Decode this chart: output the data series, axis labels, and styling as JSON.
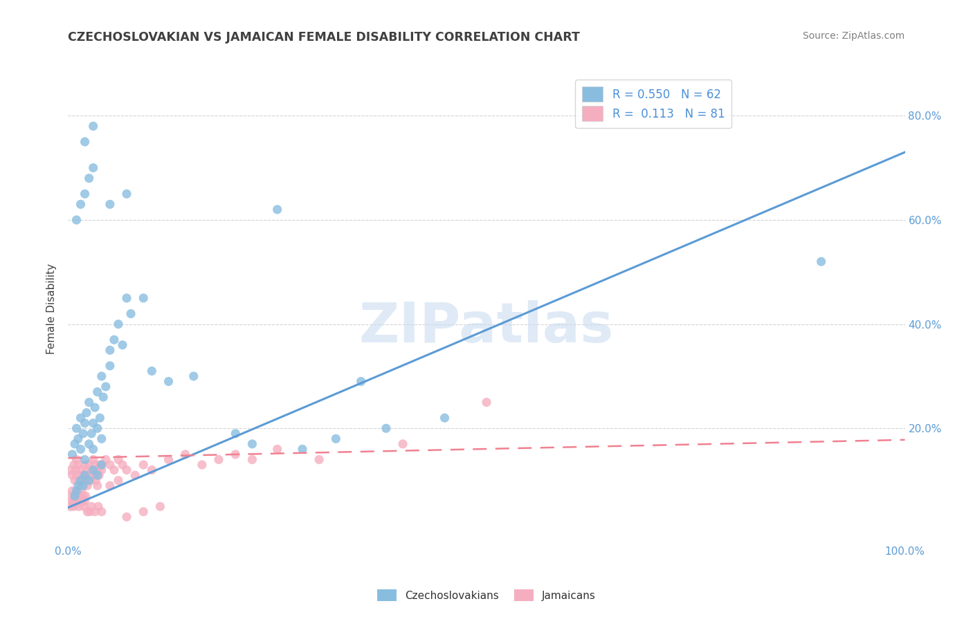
{
  "title": "CZECHOSLOVAKIAN VS JAMAICAN FEMALE DISABILITY CORRELATION CHART",
  "source": "Source: ZipAtlas.com",
  "ylabel": "Female Disability",
  "xlim": [
    0,
    1.0
  ],
  "ylim": [
    -0.02,
    0.88
  ],
  "xticks": [
    0.0,
    1.0
  ],
  "xticklabels": [
    "0.0%",
    "100.0%"
  ],
  "yticks": [
    0.2,
    0.4,
    0.6,
    0.8
  ],
  "yticklabels": [
    "20.0%",
    "40.0%",
    "60.0%",
    "80.0%"
  ],
  "grid_color": "#d0d0d0",
  "background_color": "#ffffff",
  "watermark": "ZIPatlas",
  "czech_color": "#89bde0",
  "jamaican_color": "#f5aec0",
  "czech_line_color": "#5b9bd5",
  "jamaican_line_color": "#f08090",
  "czech_R": 0.55,
  "czech_N": 62,
  "jamaican_R": 0.113,
  "jamaican_N": 81,
  "czech_line_x": [
    0.0,
    1.0
  ],
  "czech_line_y": [
    0.048,
    0.73
  ],
  "jamaican_line_x": [
    0.0,
    1.0
  ],
  "jamaican_line_y": [
    0.143,
    0.178
  ],
  "czech_scatter_x": [
    0.005,
    0.008,
    0.01,
    0.012,
    0.015,
    0.015,
    0.018,
    0.02,
    0.02,
    0.022,
    0.025,
    0.025,
    0.028,
    0.03,
    0.03,
    0.032,
    0.035,
    0.035,
    0.038,
    0.04,
    0.04,
    0.042,
    0.045,
    0.05,
    0.05,
    0.055,
    0.06,
    0.065,
    0.07,
    0.075,
    0.008,
    0.01,
    0.012,
    0.015,
    0.018,
    0.02,
    0.025,
    0.03,
    0.035,
    0.04,
    0.01,
    0.015,
    0.02,
    0.025,
    0.03,
    0.05,
    0.07,
    0.09,
    0.12,
    0.15,
    0.02,
    0.03,
    0.22,
    0.28,
    0.32,
    0.38,
    0.45,
    0.9,
    0.1,
    0.2,
    0.25,
    0.35
  ],
  "czech_scatter_y": [
    0.15,
    0.17,
    0.2,
    0.18,
    0.22,
    0.16,
    0.19,
    0.21,
    0.14,
    0.23,
    0.17,
    0.25,
    0.19,
    0.21,
    0.16,
    0.24,
    0.2,
    0.27,
    0.22,
    0.18,
    0.3,
    0.26,
    0.28,
    0.35,
    0.32,
    0.37,
    0.4,
    0.36,
    0.45,
    0.42,
    0.07,
    0.08,
    0.09,
    0.1,
    0.09,
    0.11,
    0.1,
    0.12,
    0.11,
    0.13,
    0.6,
    0.63,
    0.65,
    0.68,
    0.7,
    0.63,
    0.65,
    0.45,
    0.29,
    0.3,
    0.75,
    0.78,
    0.17,
    0.16,
    0.18,
    0.2,
    0.22,
    0.52,
    0.31,
    0.19,
    0.62,
    0.29
  ],
  "jamaican_scatter_x": [
    0.003,
    0.005,
    0.007,
    0.008,
    0.009,
    0.01,
    0.01,
    0.012,
    0.013,
    0.015,
    0.015,
    0.017,
    0.018,
    0.02,
    0.02,
    0.022,
    0.023,
    0.025,
    0.025,
    0.027,
    0.028,
    0.03,
    0.03,
    0.032,
    0.033,
    0.035,
    0.035,
    0.037,
    0.038,
    0.04,
    0.003,
    0.005,
    0.007,
    0.008,
    0.01,
    0.012,
    0.014,
    0.016,
    0.018,
    0.02,
    0.003,
    0.005,
    0.007,
    0.009,
    0.011,
    0.013,
    0.015,
    0.017,
    0.019,
    0.021,
    0.04,
    0.045,
    0.05,
    0.055,
    0.06,
    0.065,
    0.07,
    0.08,
    0.09,
    0.1,
    0.12,
    0.14,
    0.16,
    0.18,
    0.2,
    0.22,
    0.25,
    0.3,
    0.4,
    0.5,
    0.023,
    0.026,
    0.028,
    0.032,
    0.036,
    0.04,
    0.05,
    0.06,
    0.07,
    0.09,
    0.11
  ],
  "jamaican_scatter_y": [
    0.12,
    0.11,
    0.13,
    0.1,
    0.12,
    0.14,
    0.11,
    0.13,
    0.1,
    0.12,
    0.09,
    0.11,
    0.1,
    0.13,
    0.11,
    0.12,
    0.09,
    0.11,
    0.13,
    0.1,
    0.12,
    0.14,
    0.11,
    0.13,
    0.1,
    0.12,
    0.09,
    0.11,
    0.13,
    0.12,
    0.07,
    0.08,
    0.06,
    0.07,
    0.08,
    0.07,
    0.06,
    0.08,
    0.07,
    0.06,
    0.05,
    0.06,
    0.05,
    0.07,
    0.06,
    0.05,
    0.07,
    0.06,
    0.05,
    0.07,
    0.13,
    0.14,
    0.13,
    0.12,
    0.14,
    0.13,
    0.12,
    0.11,
    0.13,
    0.12,
    0.14,
    0.15,
    0.13,
    0.14,
    0.15,
    0.14,
    0.16,
    0.14,
    0.17,
    0.25,
    0.04,
    0.04,
    0.05,
    0.04,
    0.05,
    0.04,
    0.09,
    0.1,
    0.03,
    0.04,
    0.05
  ],
  "legend_text_color": "#4a90d9",
  "tick_color": "#5b9bd5",
  "title_color": "#404040",
  "source_color": "#808080"
}
